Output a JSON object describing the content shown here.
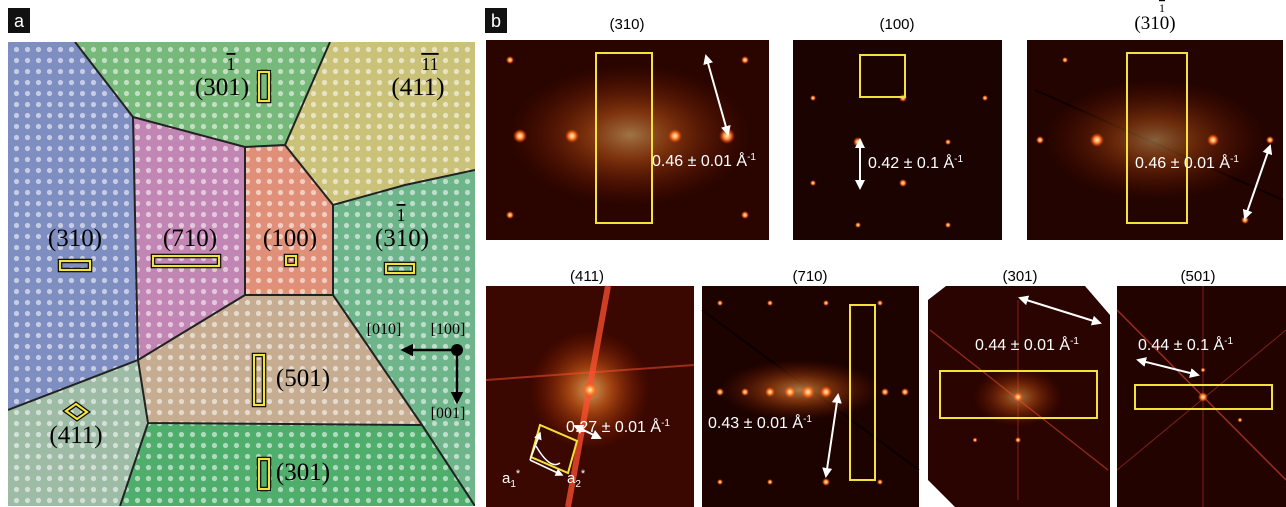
{
  "panel_a": {
    "label": "a",
    "grains": {
      "g310": {
        "label": "(310)",
        "color": "#7f8ec0"
      },
      "g301b": {
        "label": "(301)",
        "overbar": "1",
        "color": "#77b97a"
      },
      "g411b": {
        "label": "(411)",
        "overbar": "11",
        "color": "#cbc27a"
      },
      "g710": {
        "label": "(710)",
        "color": "#c286b4"
      },
      "g100": {
        "label": "(100)",
        "color": "#e09078"
      },
      "g310b": {
        "label": "(310)",
        "overbar": "1",
        "color": "#6fb58c"
      },
      "g501": {
        "label": "(501)",
        "color": "#c6ad92"
      },
      "g411": {
        "label": "(411)",
        "color": "#9ebba6"
      },
      "g301": {
        "label": "(301)",
        "color": "#4fae6c"
      }
    },
    "axes": {
      "x": "[100]",
      "y": "[010]",
      "z": "[001]"
    }
  },
  "panel_b": {
    "label": "b",
    "ffts": {
      "f310": {
        "title": "(310)",
        "measurement": "0.46 ± 0.01 Å",
        "unit_sup": "-1"
      },
      "f100": {
        "title": "(100)",
        "measurement": "0.42 ± 0.1 Å",
        "unit_sup": "-1"
      },
      "f310b": {
        "title": "(310)",
        "overbar": "1",
        "measurement": "0.46 ± 0.01 Å",
        "unit_sup": "-1"
      },
      "f411": {
        "title": "(411)",
        "measurement": "0.27 ± 0.01 Å",
        "unit_sup": "-1",
        "a1": "a",
        "a1_sub": "1",
        "a2": "a",
        "a2_sub": "2",
        "star": "*"
      },
      "f710": {
        "title": "(710)",
        "measurement": "0.43 ± 0.01 Å",
        "unit_sup": "-1"
      },
      "f301": {
        "title": "(301)",
        "measurement": "0.44 ± 0.01 Å",
        "unit_sup": "-1"
      },
      "f501": {
        "title": "(501)",
        "measurement": "0.44 ± 0.1 Å",
        "unit_sup": "-1"
      }
    }
  },
  "colors": {
    "highlight": "#f2e23a",
    "arrow": "#ffffff",
    "boundary": "#222222"
  }
}
